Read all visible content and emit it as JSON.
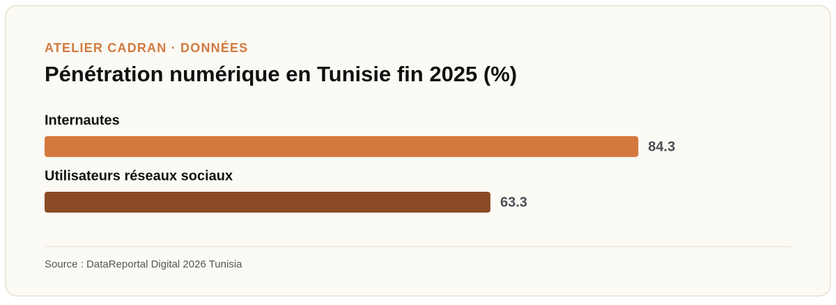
{
  "chart_data": {
    "type": "bar",
    "orientation": "horizontal",
    "kicker": "ATELIER CADRAN · DONNÉES",
    "title": "Pénétration numérique en Tunisie fin 2025 (%)",
    "categories": [
      "Internautes",
      "Utilisateurs réseaux sociaux"
    ],
    "values": [
      84.3,
      63.3
    ],
    "colors": [
      "#d4793e",
      "#8b4a26"
    ],
    "xlim": [
      0,
      100
    ],
    "source": "Source : DataReportal Digital 2026 Tunisia"
  }
}
